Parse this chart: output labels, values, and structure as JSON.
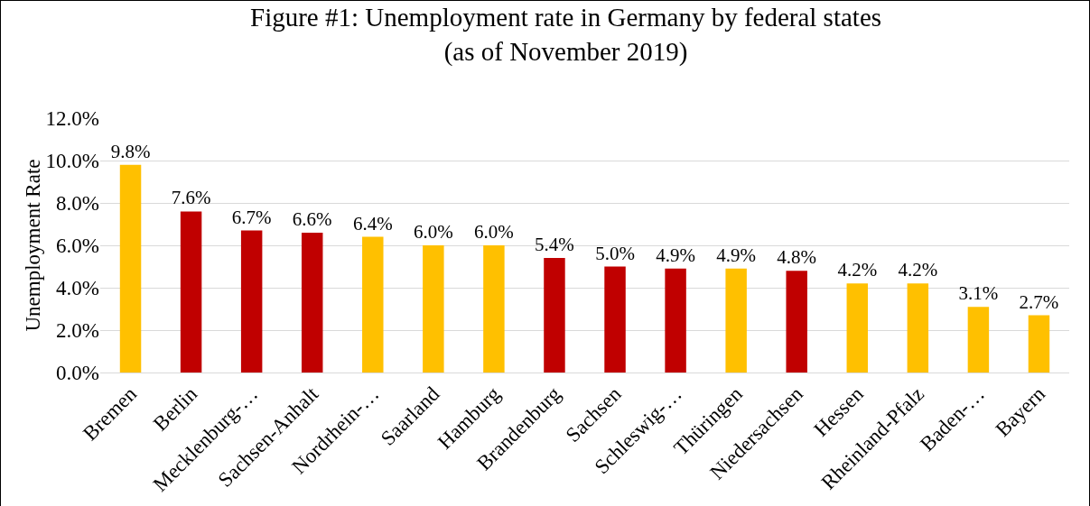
{
  "chart_data": {
    "type": "bar",
    "title": "Figure #1: Unemployment rate in Germany by federal states\n(as of November 2019)",
    "ylabel": "Unemployment Rate",
    "categories": [
      "Bremen",
      "Berlin",
      "Mecklenburg-…",
      "Sachsen-Anhalt",
      "Nordrhein-…",
      "Saarland",
      "Hamburg",
      "Brandenburg",
      "Sachsen",
      "Schleswig-…",
      "Thüringen",
      "Niedersachsen",
      "Hessen",
      "Rheinland-Pfalz",
      "Baden-…",
      "Bayern"
    ],
    "values": [
      9.8,
      7.6,
      6.7,
      6.6,
      6.4,
      6.0,
      6.0,
      5.4,
      5.0,
      4.9,
      4.9,
      4.8,
      4.2,
      4.2,
      3.1,
      2.7
    ],
    "value_labels": [
      "9.8%",
      "7.6%",
      "6.7%",
      "6.6%",
      "6.4%",
      "6.0%",
      "6.0%",
      "5.4%",
      "5.0%",
      "4.9%",
      "4.9%",
      "4.8%",
      "4.2%",
      "4.2%",
      "3.1%",
      "2.7%"
    ],
    "colors": [
      "#ffc000",
      "#c00000",
      "#c00000",
      "#c00000",
      "#ffc000",
      "#ffc000",
      "#ffc000",
      "#c00000",
      "#c00000",
      "#c00000",
      "#ffc000",
      "#c00000",
      "#ffc000",
      "#ffc000",
      "#ffc000",
      "#ffc000"
    ],
    "ylim": [
      0,
      12
    ],
    "yticks": [
      {
        "value": 0,
        "label": "0.0%"
      },
      {
        "value": 2,
        "label": "2.0%"
      },
      {
        "value": 4,
        "label": "4.0%"
      },
      {
        "value": 6,
        "label": "6.0%"
      },
      {
        "value": 8,
        "label": "8.0%"
      },
      {
        "value": 10,
        "label": "10.0%"
      },
      {
        "value": 12,
        "label": "12.0%"
      }
    ],
    "grid": "y"
  }
}
